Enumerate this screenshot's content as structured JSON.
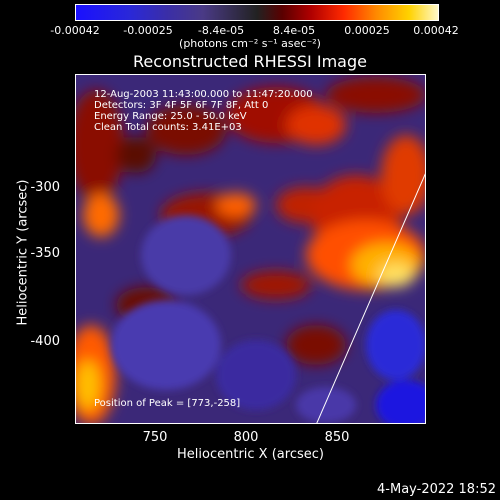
{
  "colorbar": {
    "tick_labels": [
      "-0.00042",
      "-0.00025",
      "-8.4e-05",
      "8.4e-05",
      "0.00025",
      "0.00042"
    ],
    "unit_label": "(photons cm⁻² s⁻¹ asec⁻²)"
  },
  "title": "Reconstructed RHESSI Image",
  "info": {
    "line1": "12-Aug-2003 11:43:00.000 to 11:47:20.000",
    "line2": "Detectors: 3F 4F 5F 6F 7F 8F, Att 0",
    "line3": "Energy Range: 25.0 - 50.0 keV",
    "line4": "Clean    Total counts: 3.41E+03",
    "peak": "Position of Peak = [773,-258]"
  },
  "axes": {
    "xlabel": "Heliocentric X (arcsec)",
    "ylabel": "Heliocentric Y (arcsec)",
    "xticks": [
      "750",
      "800",
      "850"
    ],
    "yticks": [
      "-300",
      "-350",
      "-400"
    ],
    "xlim": [
      705,
      895
    ],
    "ylim": [
      -450,
      -260
    ]
  },
  "footer": {
    "date": "4-May-2022 18:52"
  }
}
